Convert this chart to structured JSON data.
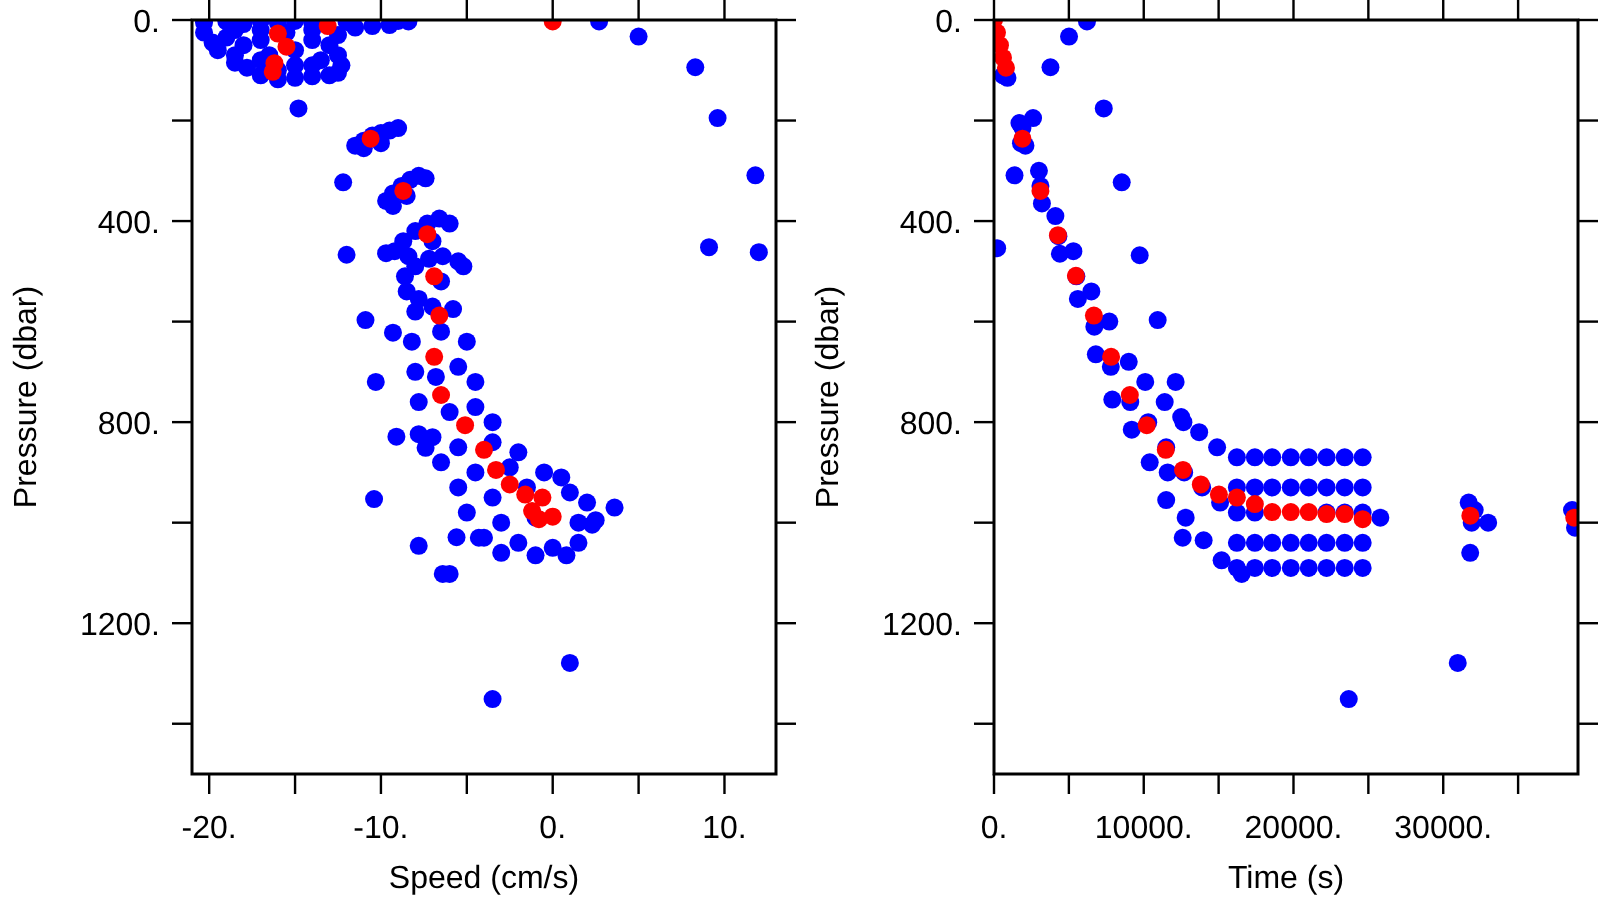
{
  "chart_data": [
    {
      "type": "scatter",
      "xlabel": "Speed (cm/s)",
      "ylabel": "Pressure (dbar)",
      "marker": "circle",
      "xlim": [
        -21,
        13
      ],
      "ylim": [
        1500,
        0
      ],
      "xticks": [
        {
          "value": -20,
          "label": "-20."
        },
        {
          "value": -15,
          "label": null
        },
        {
          "value": -10,
          "label": "-10."
        },
        {
          "value": -5,
          "label": null
        },
        {
          "value": 0,
          "label": "0."
        },
        {
          "value": 5,
          "label": null
        },
        {
          "value": 10,
          "label": "10."
        }
      ],
      "yticks": [
        {
          "value": 0,
          "label": "0."
        },
        {
          "value": 200,
          "label": null
        },
        {
          "value": 400,
          "label": "400."
        },
        {
          "value": 600,
          "label": null
        },
        {
          "value": 800,
          "label": "800."
        },
        {
          "value": 1000,
          "label": null
        },
        {
          "value": 1200,
          "label": "1200."
        },
        {
          "value": 1400,
          "label": null
        }
      ],
      "series": [
        {
          "color": "#0000ff",
          "x": [
            -20.3,
            -19,
            -18,
            -17,
            -16,
            -15,
            -14,
            -12,
            -9,
            -8.4,
            -20.3,
            -19.8,
            -19.5,
            -18.5,
            -17.8,
            -17,
            -16,
            -15,
            -14,
            -13,
            -12.5,
            -12.3,
            -12.5,
            -13,
            -12.5,
            -14,
            -15.5,
            -17,
            -18.5,
            -19,
            -18,
            -17,
            -16.5,
            -15,
            -14,
            -13.5,
            -15,
            -17,
            -18.5,
            -16,
            -14,
            -11.5,
            -10.5,
            -9.5,
            -14.8,
            2.7,
            5.0,
            8.3,
            9.6,
            11.8,
            9.1,
            12.0,
            -12.2,
            -12.0,
            -9.7,
            -10.9,
            -9.3,
            -10.3,
            -9.1,
            -7.8,
            -7.4,
            -10.4,
            -7.8,
            -6.4,
            -6.0,
            -5.6,
            -4.3,
            3.6,
            2.3,
            1.0,
            -3.5,
            -11.5,
            -11,
            -10.5,
            -10,
            -9.5,
            -9,
            -10,
            -11,
            -9.7,
            -9.3,
            -8.8,
            -8.3,
            -7.8,
            -7.4,
            -8.5,
            -9.3,
            -9.2,
            -8.7,
            -8,
            -7.3,
            -6.6,
            -6,
            -7,
            -8.4,
            -8.5,
            -8.6,
            -8,
            -7.2,
            -6.4,
            -5.5,
            -5.2,
            -6.5,
            -7.8,
            -8,
            -7,
            -5.8,
            -8.2,
            -6.5,
            -5,
            -8,
            -6.8,
            -5.5,
            -4.5,
            -7.8,
            -6,
            -4.5,
            -3.5,
            -7,
            -5.5,
            -3.5,
            -2,
            -6.5,
            -4.5,
            -2.5,
            -0.5,
            0.5,
            -5.5,
            -3.5,
            -1.5,
            1,
            2,
            -5,
            -3,
            -1,
            1.5,
            2.5,
            -4,
            -2,
            0,
            1.5,
            -3,
            -1,
            0.8
          ],
          "values": [
            5,
            3,
            8,
            2,
            6,
            2,
            5,
            4,
            2,
            3,
            25,
            45,
            60,
            70,
            95,
            110,
            118,
            115,
            112,
            110,
            105,
            90,
            70,
            50,
            30,
            20,
            25,
            20,
            20,
            35,
            50,
            40,
            70,
            60,
            40,
            80,
            90,
            80,
            85,
            100,
            90,
            15,
            12,
            10,
            176,
            3,
            33,
            94,
            195,
            309,
            452,
            462,
            323,
            467,
            464,
            597,
            622,
            720,
            829,
            824,
            851,
            953,
            1046,
            1102,
            1102,
            1029,
            1030,
            970,
            1004,
            1279,
            1351,
            250,
            240,
            230,
            225,
            220,
            215,
            245,
            255,
            360,
            345,
            330,
            318,
            310,
            315,
            350,
            370,
            460,
            440,
            420,
            405,
            395,
            405,
            440,
            470,
            540,
            510,
            490,
            475,
            470,
            480,
            490,
            520,
            555,
            580,
            570,
            575,
            640,
            620,
            640,
            700,
            710,
            690,
            720,
            760,
            780,
            770,
            800,
            830,
            850,
            840,
            860,
            880,
            900,
            890,
            900,
            910,
            930,
            950,
            930,
            940,
            960,
            980,
            1000,
            990,
            1000,
            995,
            1030,
            1040,
            1050,
            1040,
            1060,
            1065,
            1065
          ]
        },
        {
          "color": "#ff0000",
          "x": [
            -13.1,
            0,
            -16,
            -15.5,
            -16.2,
            -16.3,
            -10.6,
            -8.7,
            -7.3,
            -6.9,
            -6.6,
            -6.9,
            -6.5,
            -5.1,
            -4.0,
            -3.3,
            -2.5,
            -1.6,
            -0.6,
            -1.2,
            -0.8,
            0
          ],
          "values": [
            12,
            3,
            27,
            53,
            86,
            103,
            236,
            340,
            426,
            510,
            588,
            670,
            746,
            806,
            855,
            895,
            924,
            944,
            950,
            977,
            993,
            988
          ]
        }
      ]
    },
    {
      "type": "scatter",
      "xlabel": "Time (s)",
      "ylabel": "Pressure (dbar)",
      "marker": "circle",
      "xlim": [
        0,
        39000
      ],
      "ylim": [
        1500,
        0
      ],
      "xticks": [
        {
          "value": 0,
          "label": "0."
        },
        {
          "value": 5000,
          "label": null
        },
        {
          "value": 10000,
          "label": "10000."
        },
        {
          "value": 15000,
          "label": null
        },
        {
          "value": 20000,
          "label": "20000."
        },
        {
          "value": 25000,
          "label": null
        },
        {
          "value": 30000,
          "label": "30000."
        },
        {
          "value": 35000,
          "label": null
        }
      ],
      "yticks": [
        {
          "value": 0,
          "label": "0."
        },
        {
          "value": 200,
          "label": null
        },
        {
          "value": 400,
          "label": "400."
        },
        {
          "value": 600,
          "label": null
        },
        {
          "value": 800,
          "label": "800."
        },
        {
          "value": 1000,
          "label": null
        },
        {
          "value": 1200,
          "label": "1200."
        },
        {
          "value": 1400,
          "label": null
        }
      ],
      "series": [
        {
          "color": "#0000ff",
          "x": [
            900,
            600,
            5010,
            6210,
            3770,
            2610,
            7330,
            1370,
            8530,
            210,
            9730,
            10930,
            12130,
            12650,
            25800,
            33000,
            16540,
            30970,
            23690,
            1700,
            1900,
            2100,
            1800,
            3000,
            3100,
            3200,
            4100,
            4300,
            4400,
            5300,
            5500,
            5600,
            6500,
            6700,
            6800,
            7700,
            7800,
            7900,
            9000,
            9100,
            9200,
            10100,
            10300,
            10400,
            11400,
            11500,
            11600,
            11500,
            12500,
            12700,
            12800,
            12600,
            13700,
            13900,
            14000,
            14900,
            15100,
            15200,
            16220,
            16220,
            16220,
            16220,
            16220,
            17420,
            17420,
            17420,
            17420,
            17420,
            18580,
            18580,
            18580,
            18580,
            19820,
            19820,
            19820,
            19820,
            21020,
            21020,
            21020,
            21020,
            22210,
            22210,
            22210,
            22210,
            22210,
            23420,
            23420,
            23420,
            23420,
            23420,
            24620,
            24620,
            24620,
            24620,
            24620,
            31700,
            31900,
            31800,
            32100,
            38600,
            38800
          ],
          "values": [
            115,
            110,
            33,
            3,
            94,
            195,
            176,
            309,
            323,
            454,
            468,
            597,
            720,
            800,
            990,
            1000,
            1102,
            1279,
            1351,
            205,
            215,
            250,
            245,
            300,
            330,
            365,
            390,
            430,
            465,
            460,
            510,
            555,
            540,
            610,
            665,
            600,
            690,
            755,
            680,
            760,
            815,
            720,
            800,
            880,
            760,
            850,
            900,
            955,
            790,
            900,
            990,
            1030,
            820,
            930,
            1035,
            850,
            960,
            1075,
            870,
            930,
            980,
            1040,
            1090,
            870,
            930,
            980,
            1040,
            1090,
            870,
            930,
            1040,
            1090,
            870,
            930,
            1040,
            1090,
            870,
            930,
            1040,
            1090,
            870,
            930,
            980,
            1040,
            1090,
            870,
            930,
            980,
            1040,
            1090,
            870,
            930,
            980,
            1040,
            1090,
            960,
            1000,
            1060,
            975,
            975,
            1010
          ]
        },
        {
          "color": "#ff0000",
          "x": [
            0,
            200,
            400,
            600,
            800,
            1900,
            3100,
            4270,
            5470,
            6670,
            7820,
            9070,
            10200,
            11470,
            12620,
            13810,
            15020,
            16220,
            17420,
            18580,
            19820,
            21020,
            22210,
            23420,
            24620,
            31810,
            38750
          ],
          "values": [
            0,
            25,
            50,
            75,
            95,
            236,
            340,
            428,
            509,
            588,
            670,
            746,
            806,
            855,
            895,
            924,
            944,
            950,
            963,
            979,
            979,
            979,
            983,
            983,
            993,
            986,
            990
          ]
        }
      ]
    }
  ]
}
